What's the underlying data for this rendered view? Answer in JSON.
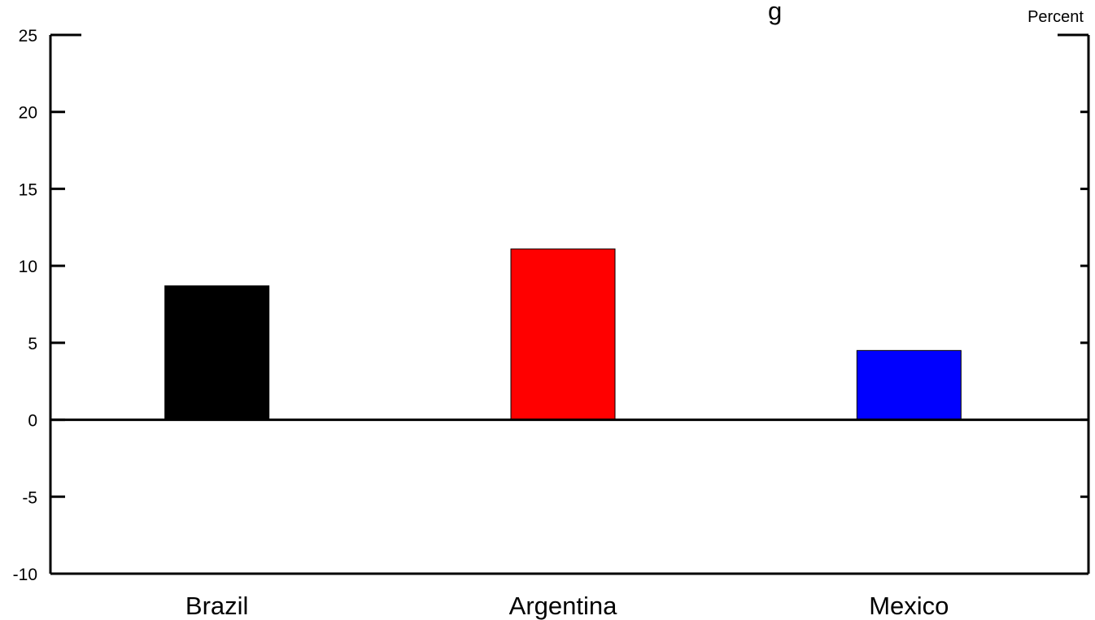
{
  "chart_data": {
    "type": "bar",
    "title": "",
    "visible_title_fragment": "g",
    "unit_label": "Percent",
    "categories": [
      "Brazil",
      "Argentina",
      "Mexico"
    ],
    "values": [
      8.7,
      11.1,
      4.5
    ],
    "bar_colors": [
      "#000000",
      "#ff0000",
      "#0000ff"
    ],
    "ylim": [
      -10,
      25
    ],
    "yticks": [
      25,
      20,
      15,
      10,
      5,
      0,
      -5,
      -10
    ],
    "ytick_labels": [
      "25",
      "20",
      "15",
      "10",
      "5",
      "0",
      "-5",
      "-10"
    ],
    "xlabel": "",
    "ylabel": "",
    "grid": false
  }
}
